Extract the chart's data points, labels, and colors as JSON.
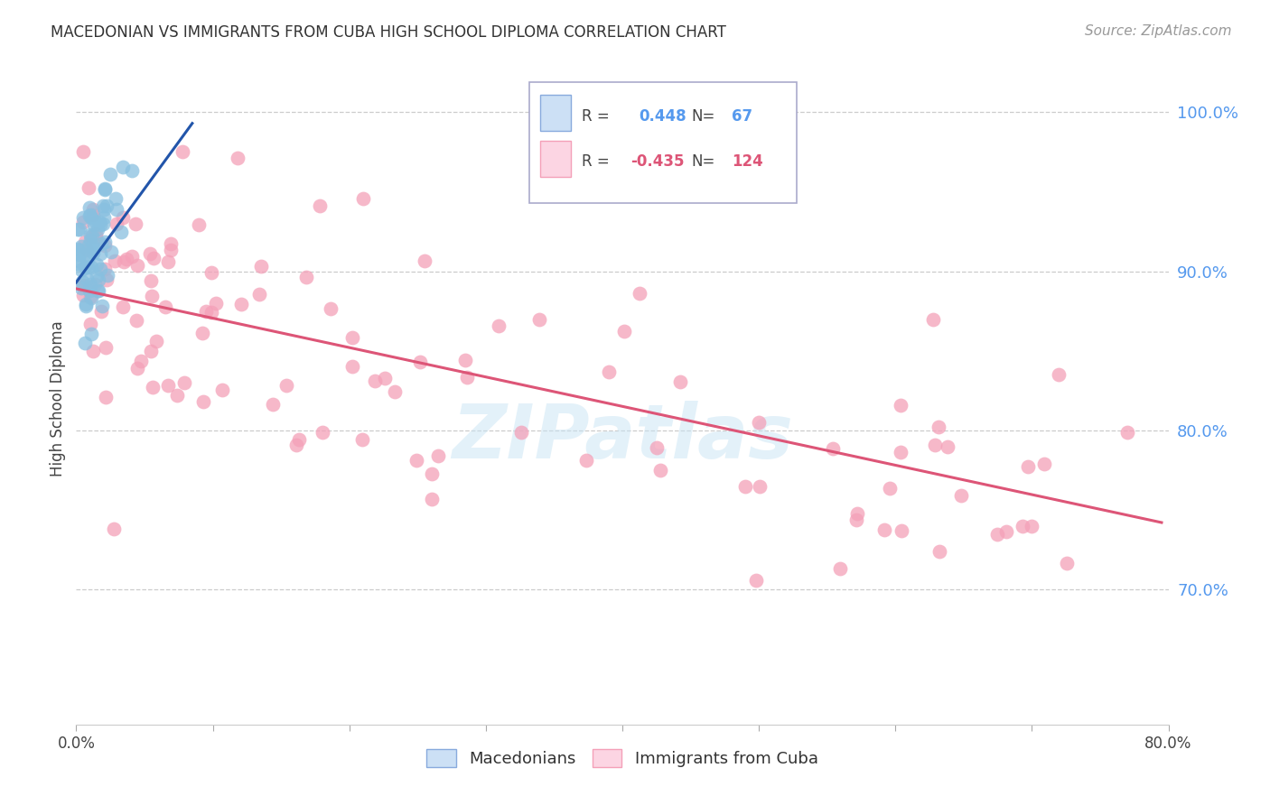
{
  "title": "MACEDONIAN VS IMMIGRANTS FROM CUBA HIGH SCHOOL DIPLOMA CORRELATION CHART",
  "source": "Source: ZipAtlas.com",
  "ylabel": "High School Diploma",
  "xlim": [
    0.0,
    0.8
  ],
  "ylim": [
    0.615,
    1.025
  ],
  "yticks_right": [
    0.7,
    0.8,
    0.9,
    1.0
  ],
  "ytick_labels_right": [
    "70.0%",
    "80.0%",
    "90.0%",
    "100.0%"
  ],
  "grid_color": "#cccccc",
  "background_color": "#ffffff",
  "blue_color": "#88c0e0",
  "pink_color": "#f4a0b8",
  "blue_line_color": "#2255aa",
  "pink_line_color": "#dd5577",
  "right_axis_color": "#5599ee",
  "watermark": "ZIPatlas",
  "mac_trend_x0": 0.0,
  "mac_trend_x1": 0.085,
  "mac_trend_y0": 0.893,
  "mac_trend_y1": 0.993,
  "cuba_trend_x0": 0.0,
  "cuba_trend_x1": 0.795,
  "cuba_trend_y0": 0.889,
  "cuba_trend_y1": 0.742
}
